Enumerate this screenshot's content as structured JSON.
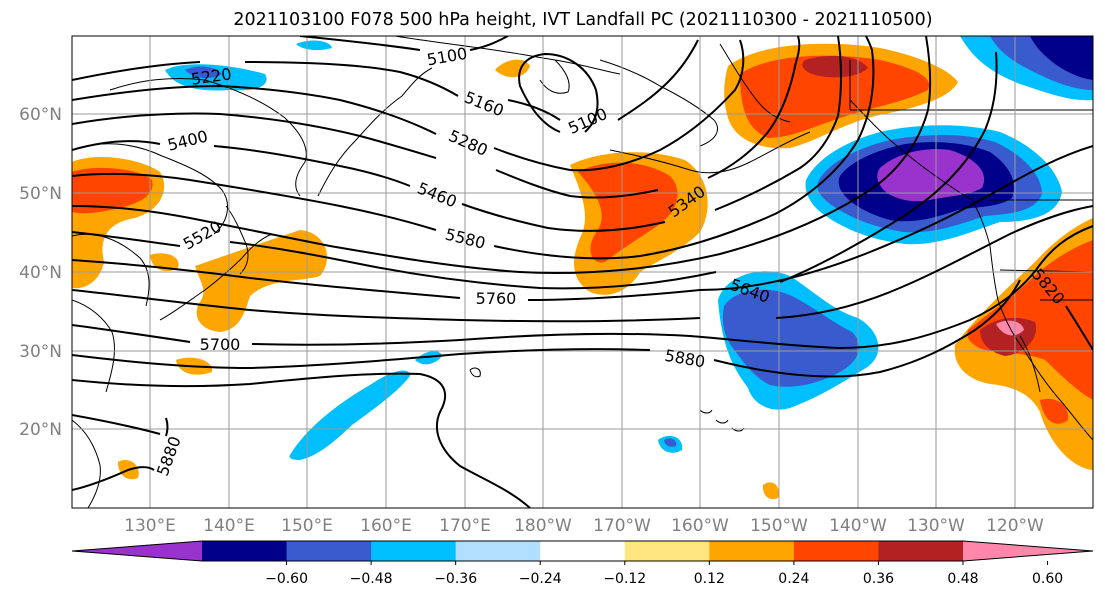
{
  "title": "2021103100 F078 500 hPa height, IVT Landfall PC (2021110300 - 2021110500)",
  "map": {
    "lon_range_deg_east": [
      120,
      250
    ],
    "lat_range": [
      10,
      70
    ],
    "lon_tick_labels": [
      "130°E",
      "140°E",
      "150°E",
      "160°E",
      "170°E",
      "180°W",
      "170°W",
      "160°W",
      "150°W",
      "140°W",
      "130°W",
      "120°W"
    ],
    "lat_tick_labels": [
      "20°N",
      "30°N",
      "40°N",
      "50°N",
      "60°N"
    ],
    "gridlines": true
  },
  "height_contour_labels": [
    "5100",
    "5100",
    "5160",
    "5220",
    "5280",
    "5340",
    "5400",
    "5460",
    "5520",
    "5580",
    "5640",
    "5700",
    "5760",
    "5820",
    "5880",
    "5880"
  ],
  "colorbar": {
    "tick_labels": [
      "−0.60",
      "−0.48",
      "−0.36",
      "−0.24",
      "−0.12",
      "0.12",
      "0.24",
      "0.36",
      "0.48",
      "0.60"
    ],
    "colors": [
      "#9a32cd",
      "#00008b",
      "#3a5bcd",
      "#00bfff",
      "#b2dfff",
      "#ffffff",
      "#ffe680",
      "#ffa500",
      "#ff4500",
      "#b22222",
      "#ff88aa"
    ],
    "extend": "both"
  },
  "chart_data": {
    "type": "contour-map",
    "title": "2021103100 F078 500 hPa height, IVT Landfall PC (2021110300 - 2021110500)",
    "contour_levels_labeled": [
      5100,
      5160,
      5220,
      5280,
      5340,
      5400,
      5460,
      5520,
      5580,
      5640,
      5700,
      5760,
      5820,
      5880
    ],
    "fill_levels": [
      -0.6,
      -0.48,
      -0.36,
      -0.24,
      -0.12,
      0.12,
      0.24,
      0.36,
      0.48,
      0.6
    ]
  }
}
